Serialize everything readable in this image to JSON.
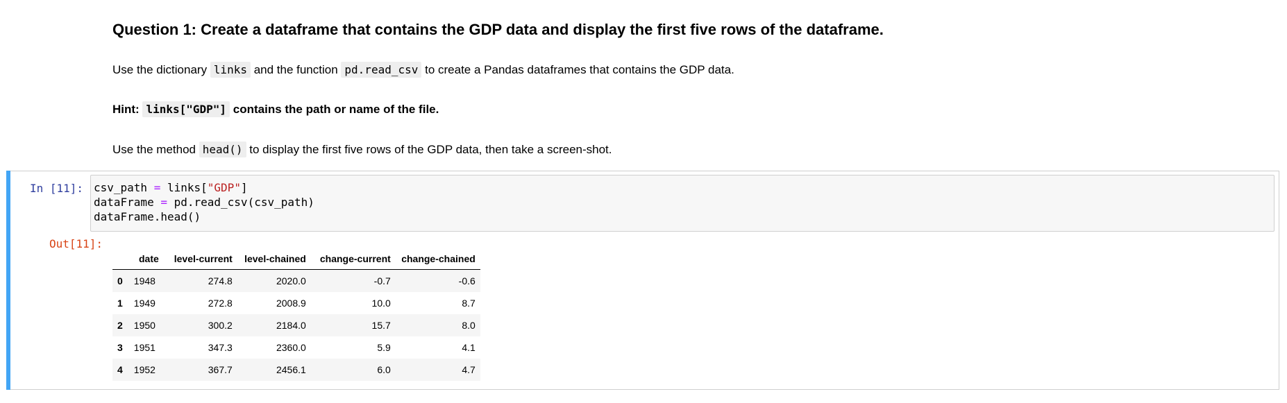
{
  "markdown": {
    "heading": "Question 1: Create a dataframe that contains the GDP data and display the first five rows of the dataframe.",
    "p1": {
      "text_a": "Use the dictionary ",
      "code_a": "links",
      "text_b": " and the function ",
      "code_b": "pd.read_csv",
      "text_c": " to create a Pandas dataframes that contains the GDP data."
    },
    "p2": {
      "text_a": "Hint: ",
      "code_a": "links[\"GDP\"]",
      "text_b": " contains the path or name of the file."
    },
    "p3": {
      "text_a": "Use the method ",
      "code_a": "head()",
      "text_b": " to display the first five rows of the GDP data, then take a screen-shot."
    }
  },
  "cell": {
    "in_prompt": "In [11]:",
    "out_prompt": "Out[11]:",
    "code": {
      "line1_a": "csv_path ",
      "line1_op": "=",
      "line1_b": " links[",
      "line1_str": "\"GDP\"",
      "line1_c": "]",
      "line2_a": "dataFrame ",
      "line2_op": "=",
      "line2_b": " pd.read_csv(csv_path)",
      "line3": "dataFrame.head()"
    }
  },
  "dataframe": {
    "columns": [
      "",
      "date",
      "level-current",
      "level-chained",
      "change-current",
      "change-chained"
    ],
    "rows": [
      {
        "index": "0",
        "date": "1948",
        "level_current": "274.8",
        "level_chained": "2020.0",
        "change_current": "-0.7",
        "change_chained": "-0.6"
      },
      {
        "index": "1",
        "date": "1949",
        "level_current": "272.8",
        "level_chained": "2008.9",
        "change_current": "10.0",
        "change_chained": "8.7"
      },
      {
        "index": "2",
        "date": "1950",
        "level_current": "300.2",
        "level_chained": "2184.0",
        "change_current": "15.7",
        "change_chained": "8.0"
      },
      {
        "index": "3",
        "date": "1951",
        "level_current": "347.3",
        "level_chained": "2360.0",
        "change_current": "5.9",
        "change_chained": "4.1"
      },
      {
        "index": "4",
        "date": "1952",
        "level_current": "367.7",
        "level_chained": "2456.1",
        "change_current": "6.0",
        "change_chained": "4.7"
      }
    ]
  },
  "colors": {
    "cell_selected_bar": "#42a5f5",
    "in_prompt": "#303f9f",
    "out_prompt": "#d84315",
    "code_operator": "#aa22ff",
    "code_string": "#ba2121"
  }
}
